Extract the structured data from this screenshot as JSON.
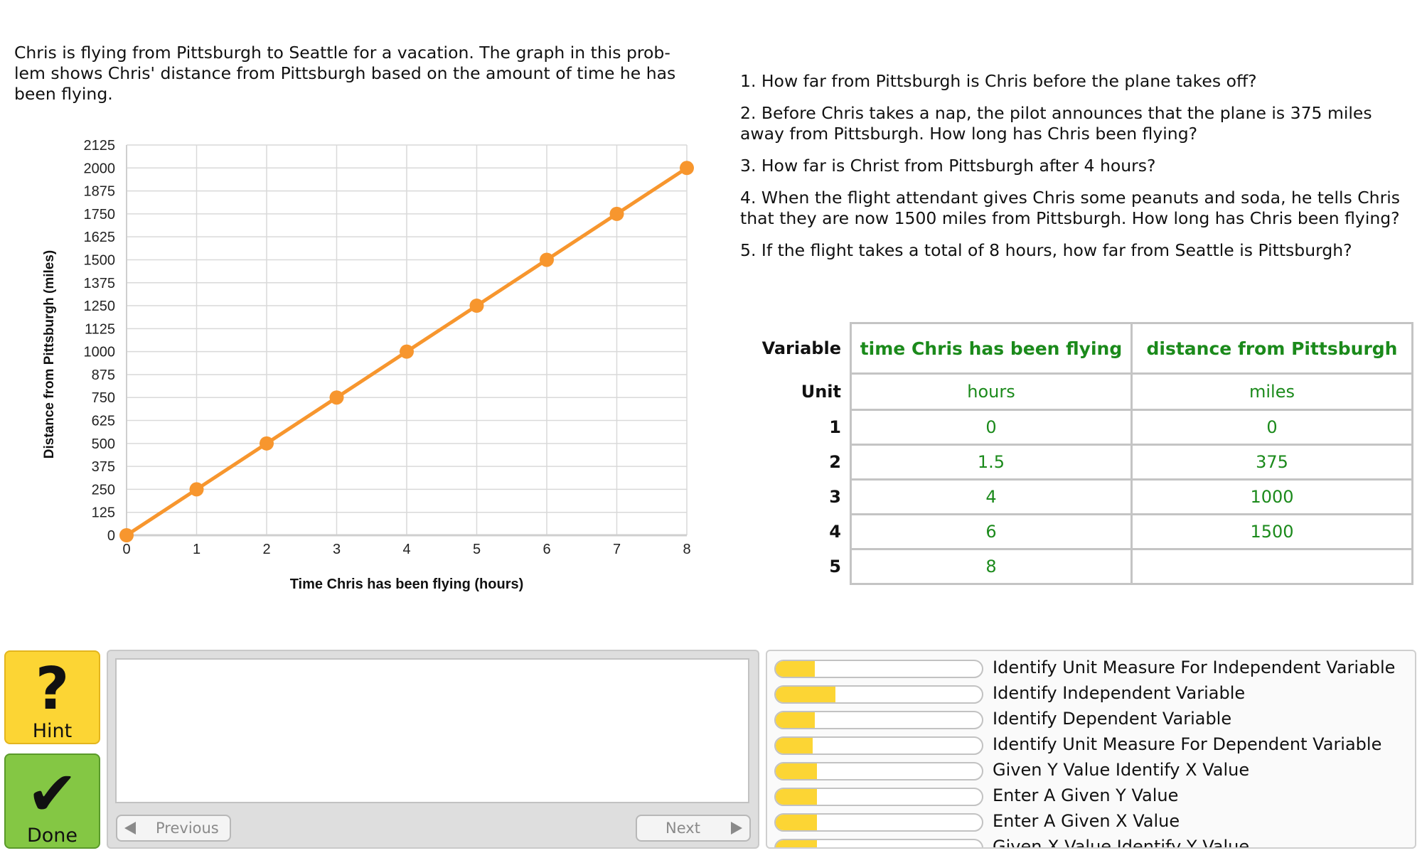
{
  "problem": {
    "lines": [
      "Chris is flying from Pittsburgh to Seattle for a vacation. The graph in this prob-",
      "lem shows Chris' distance from Pittsburgh based on the amount of time he has",
      "been flying."
    ]
  },
  "chart_data": {
    "type": "line",
    "xlabel": "Time Chris has been flying (hours)",
    "ylabel": "Distance from Pittsburgh (miles)",
    "x": [
      0,
      1,
      2,
      3,
      4,
      5,
      6,
      7,
      8
    ],
    "series": [
      {
        "values": [
          0,
          250,
          500,
          750,
          1000,
          1250,
          1500,
          1750,
          2000
        ],
        "color": "#f7962e"
      }
    ],
    "xlim": [
      0,
      8
    ],
    "ylim": [
      0,
      2125
    ],
    "xticks": [
      "0",
      "1",
      "2",
      "3",
      "4",
      "5",
      "6",
      "7",
      "8"
    ],
    "yticks": [
      "0",
      "125",
      "250",
      "375",
      "500",
      "625",
      "750",
      "875",
      "1000",
      "1125",
      "1250",
      "1375",
      "1500",
      "1625",
      "1750",
      "1875",
      "2000",
      "2125"
    ],
    "grid": true
  },
  "questions": [
    "1. How far from Pittsburgh is Chris before the plane takes off?",
    "2. Before Chris takes a nap, the pilot announces that the plane is 375 miles away from Pittsburgh. How long has Chris been flying?",
    "3. How far is Christ from Pittsburgh after 4 hours?",
    "4. When the flight attendant gives Chris some peanuts and soda, he tells Chris that they are now 1500 miles from Pittsburgh. How long has Chris been flying?",
    "5. If the flight takes a total of 8 hours, how far from Seattle is Pittsburgh?"
  ],
  "table": {
    "variable_label": "Variable",
    "unit_label": "Unit",
    "columns": [
      "time Chris has been flying",
      "distance from Pittsburgh"
    ],
    "units": [
      "hours",
      "miles"
    ],
    "rows": [
      {
        "label": "1",
        "cells": [
          "0",
          "0"
        ]
      },
      {
        "label": "2",
        "cells": [
          "1.5",
          "375"
        ]
      },
      {
        "label": "3",
        "cells": [
          "4",
          "1000"
        ]
      },
      {
        "label": "4",
        "cells": [
          "6",
          "1500"
        ]
      },
      {
        "label": "5",
        "cells": [
          "8",
          ""
        ]
      }
    ]
  },
  "buttons": {
    "hint_glyph": "?",
    "hint_label": "Hint",
    "done_glyph": "✔",
    "done_label": "Done",
    "previous_label": "Previous",
    "next_label": "Next"
  },
  "skills": [
    {
      "name": "Identify Unit Measure For Independent Variable",
      "fill": 0.19
    },
    {
      "name": "Identify Independent Variable",
      "fill": 0.29
    },
    {
      "name": "Identify Dependent Variable",
      "fill": 0.19
    },
    {
      "name": "Identify Unit Measure For Dependent Variable",
      "fill": 0.18
    },
    {
      "name": "Given Y Value Identify X Value",
      "fill": 0.2
    },
    {
      "name": "Enter A Given Y Value",
      "fill": 0.2
    },
    {
      "name": "Enter A Given X Value",
      "fill": 0.2
    },
    {
      "name": "Given X Value Identify Y Value",
      "fill": 0.2
    }
  ],
  "colors": {
    "accent_green": "#1b8a1b",
    "line_orange": "#f7962e",
    "hint_yellow": "#fcd534",
    "done_green": "#84c744"
  }
}
